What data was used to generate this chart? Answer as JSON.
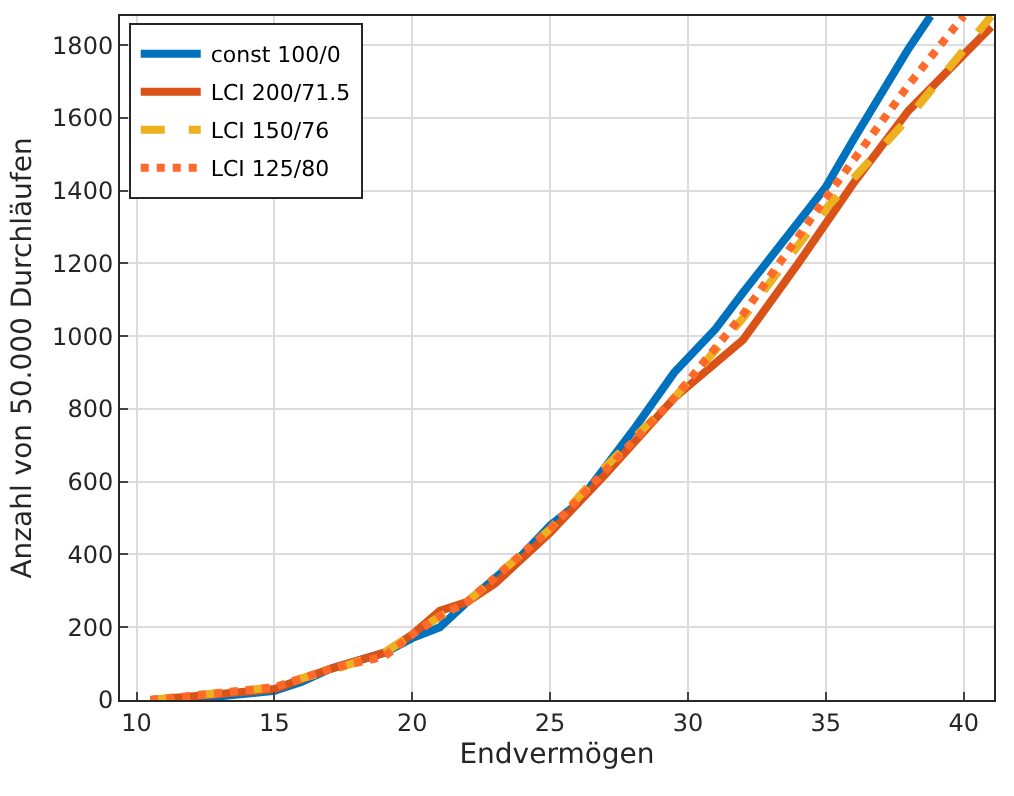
{
  "chart_data": {
    "type": "line",
    "xlabel": "Endvermögen",
    "ylabel": "Anzahl von 50.000 Durchläufen",
    "xlim": [
      9.4,
      41.1
    ],
    "xticks": [
      10,
      15,
      20,
      25,
      30,
      35,
      40
    ],
    "ylim": [
      0,
      1880
    ],
    "yticks": [
      0,
      200,
      400,
      600,
      800,
      1000,
      1200,
      1400,
      1600,
      1800
    ],
    "grid": true,
    "legend": "top left",
    "series": [
      {
        "name": "const 100/0",
        "color": "#0072bd",
        "line_style": "solid",
        "x": [
          10.5,
          13,
          15,
          16,
          17,
          19,
          20,
          21,
          22,
          24,
          25,
          26,
          28,
          29.5,
          31,
          32,
          35,
          36,
          38,
          38.8
        ],
        "values": [
          0,
          10,
          25,
          50,
          85,
          130,
          170,
          200,
          270,
          400,
          480,
          540,
          740,
          900,
          1020,
          1120,
          1410,
          1540,
          1790,
          1880
        ]
      },
      {
        "name": "LCI 200/71.5",
        "color": "#d95319",
        "line_style": "solid",
        "x": [
          10.5,
          15,
          17,
          19,
          20,
          21,
          22,
          23,
          25,
          27,
          29.5,
          32,
          34,
          36,
          38,
          41
        ],
        "values": [
          0,
          30,
          85,
          130,
          180,
          245,
          270,
          320,
          460,
          620,
          830,
          990,
          1200,
          1420,
          1620,
          1850
        ]
      },
      {
        "name": "LCI 150/76",
        "color": "#edb120",
        "line_style": "dashed",
        "x": [
          10.5,
          15,
          16,
          17,
          19,
          20,
          21,
          22,
          25,
          27,
          29.5,
          32,
          35,
          38,
          41
        ],
        "values": [
          0,
          35,
          60,
          80,
          130,
          180,
          230,
          270,
          470,
          640,
          830,
          1050,
          1350,
          1600,
          1880
        ]
      },
      {
        "name": "LCI 125/80",
        "color": "#ff6929",
        "line_style": "dotted",
        "x": [
          10.5,
          15,
          17,
          19,
          20,
          21,
          22,
          25,
          27,
          29.5,
          32,
          35,
          38,
          40
        ],
        "values": [
          0,
          35,
          85,
          120,
          180,
          230,
          270,
          470,
          630,
          830,
          1060,
          1380,
          1690,
          1880
        ]
      }
    ]
  }
}
